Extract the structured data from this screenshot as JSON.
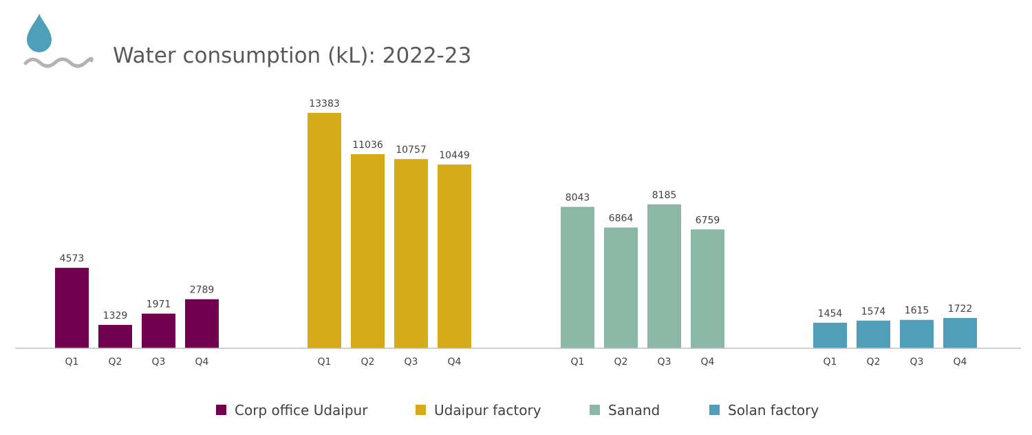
{
  "title": "Water consumption (kL): 2022-23",
  "icons": {
    "drop": "water-drop-icon",
    "wave": "wave-icon",
    "drop_color": "#4e9fba",
    "wave_color": "#b3b3b3"
  },
  "colors": {
    "axis": "#bfbfbf"
  },
  "legend": {
    "position": "bottom"
  },
  "chart_data": {
    "type": "bar",
    "title": "Water consumption (kL): 2022-23",
    "xlabel": "",
    "ylabel": "",
    "ylim": [
      0,
      13383
    ],
    "grid": false,
    "legend_position": "bottom",
    "categories": [
      "Q1",
      "Q2",
      "Q3",
      "Q4"
    ],
    "series": [
      {
        "name": "Corp office Udaipur",
        "color": "#720050",
        "values": [
          4573,
          1329,
          1971,
          2789
        ]
      },
      {
        "name": "Udaipur factory",
        "color": "#d6ab1a",
        "values": [
          13383,
          11036,
          10757,
          10449
        ]
      },
      {
        "name": "Sanand",
        "color": "#8ab7a6",
        "values": [
          8043,
          6864,
          8185,
          6759
        ]
      },
      {
        "name": "Solan factory",
        "color": "#519eb9",
        "values": [
          1454,
          1574,
          1615,
          1722
        ]
      }
    ]
  }
}
